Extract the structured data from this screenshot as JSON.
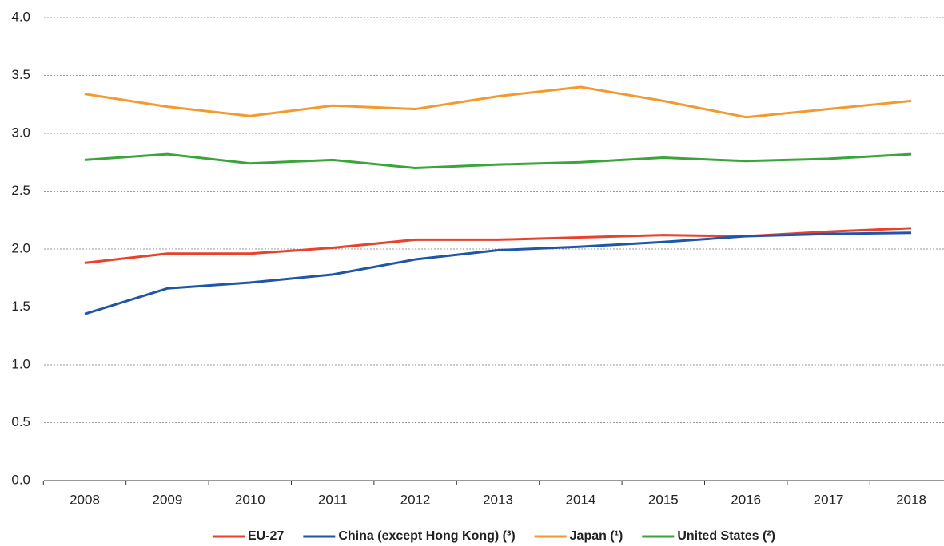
{
  "chart_data": {
    "type": "line",
    "categories": [
      "2008",
      "2009",
      "2010",
      "2011",
      "2012",
      "2013",
      "2014",
      "2015",
      "2016",
      "2017",
      "2018"
    ],
    "series": [
      {
        "name": "EU-27",
        "color": "#e8412c",
        "values": [
          1.88,
          1.96,
          1.96,
          2.01,
          2.08,
          2.08,
          2.1,
          2.12,
          2.11,
          2.15,
          2.18
        ]
      },
      {
        "name": "China (except Hong Kong) (³)",
        "color": "#1f56a8",
        "values": [
          1.44,
          1.66,
          1.71,
          1.78,
          1.91,
          1.99,
          2.02,
          2.06,
          2.11,
          2.13,
          2.14
        ]
      },
      {
        "name": "Japan (¹)",
        "color": "#f39a2e",
        "values": [
          3.34,
          3.23,
          3.15,
          3.24,
          3.21,
          3.32,
          3.4,
          3.28,
          3.14,
          3.21,
          3.28
        ]
      },
      {
        "name": "United States (²)",
        "color": "#3aa53a",
        "values": [
          2.77,
          2.82,
          2.74,
          2.77,
          2.7,
          2.73,
          2.75,
          2.79,
          2.76,
          2.78,
          2.82
        ]
      }
    ],
    "ylim": [
      0,
      4
    ],
    "yticks": [
      {
        "value": 0,
        "label": "0.0"
      },
      0.5,
      {
        "value": 1,
        "label": "1.0"
      },
      1.5,
      {
        "value": 2,
        "label": "2.0"
      },
      2.5,
      {
        "value": 3,
        "label": "3.0"
      },
      3.5,
      {
        "value": 4,
        "label": "4.0"
      }
    ],
    "grid": true,
    "legend": "bottom"
  }
}
